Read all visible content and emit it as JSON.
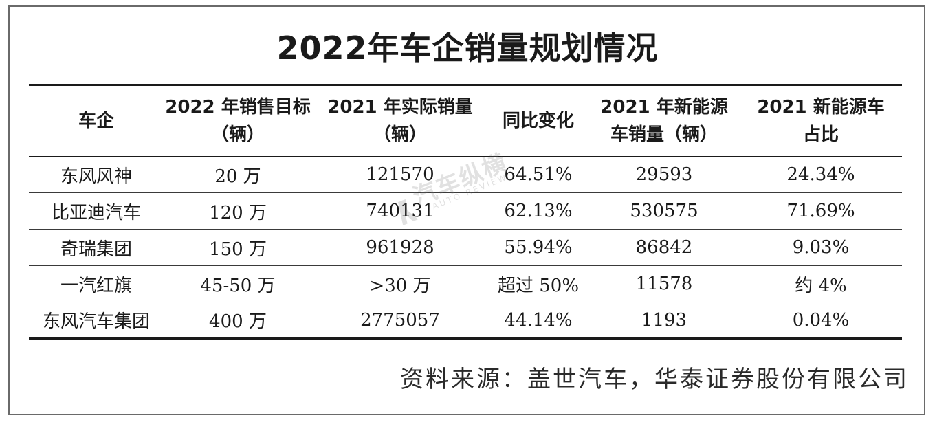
{
  "title": "2022年车企销量规划情况",
  "table": {
    "headers": [
      [
        "车企"
      ],
      [
        "2022 年销售目标",
        "（辆）"
      ],
      [
        "2021 年实际销量",
        "（辆）"
      ],
      [
        "同比变化"
      ],
      [
        "2021 年新能源",
        "车销量（辆）"
      ],
      [
        "2021 新能源车",
        "占比"
      ]
    ],
    "rows": [
      [
        "东风风神",
        "20 万",
        "121570",
        "64.51%",
        "29593",
        "24.34%"
      ],
      [
        "比亚迪汽车",
        "120 万",
        "740131",
        "62.13%",
        "530575",
        "71.69%"
      ],
      [
        "奇瑞集团",
        "150 万",
        "961928",
        "55.94%",
        "86842",
        "9.03%"
      ],
      [
        "一汽红旗",
        "45-50 万",
        ">30 万",
        "超过 50%",
        "11578",
        "约 4%"
      ],
      [
        "东风汽车集团",
        "400 万",
        "2775057",
        "44.14%",
        "1193",
        "0.04%"
      ]
    ]
  },
  "source": "资料来源：盖世汽车，华泰证券股份有限公司",
  "watermark": {
    "text": "汽车纵横",
    "subtext": "AUTO REVIEW",
    "icon": "auto-review-logo-icon"
  }
}
